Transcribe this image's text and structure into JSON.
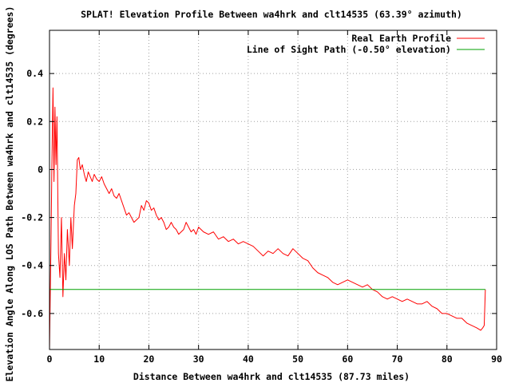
{
  "chart_data": {
    "type": "line",
    "title": "SPLAT! Elevation Profile Between wa4hrk and clt14535 (63.39° azimuth)",
    "xlabel": "Distance Between wa4hrk and clt14535 (87.73 miles)",
    "ylabel": "Elevation Angle Along LOS Path Between wa4hrk and clt14535 (degrees)",
    "xlim": [
      0,
      90
    ],
    "ylim": [
      -0.75,
      0.58
    ],
    "xticks": [
      "0",
      "10",
      "20",
      "30",
      "40",
      "50",
      "60",
      "70",
      "80",
      "90"
    ],
    "yticks": [
      "0.4",
      "0.2",
      "0",
      "-0.2",
      "-0.4",
      "-0.6"
    ],
    "grid": true,
    "legend_position": "top-right",
    "series": [
      {
        "name": "Real Earth Profile",
        "color": "#ff0000",
        "x": [
          0.0,
          0.3,
          0.5,
          0.7,
          0.9,
          1.1,
          1.3,
          1.5,
          1.8,
          2.1,
          2.4,
          2.7,
          3.0,
          3.3,
          3.6,
          4.0,
          4.3,
          4.6,
          5.0,
          5.3,
          5.6,
          5.9,
          6.2,
          6.6,
          7.0,
          7.4,
          7.8,
          8.2,
          8.6,
          9.0,
          9.5,
          10.0,
          10.5,
          11.0,
          11.5,
          12.0,
          12.5,
          13.0,
          13.5,
          14.0,
          14.5,
          15.0,
          15.5,
          16.0,
          16.5,
          17.0,
          17.5,
          18.0,
          18.5,
          19.0,
          19.5,
          20.0,
          20.5,
          21.0,
          21.5,
          22.0,
          22.5,
          23.0,
          23.5,
          24.0,
          24.5,
          25.0,
          25.5,
          26.0,
          26.5,
          27.0,
          27.5,
          28.0,
          28.5,
          29.0,
          29.5,
          30.0,
          31.0,
          32.0,
          33.0,
          34.0,
          35.0,
          36.0,
          37.0,
          38.0,
          39.0,
          40.0,
          41.0,
          42.0,
          43.0,
          44.0,
          45.0,
          46.0,
          47.0,
          48.0,
          49.0,
          50.0,
          51.0,
          52.0,
          53.0,
          54.0,
          55.0,
          56.0,
          57.0,
          58.0,
          59.0,
          60.0,
          61.0,
          62.0,
          63.0,
          64.0,
          65.0,
          66.0,
          67.0,
          68.0,
          69.0,
          70.0,
          71.0,
          72.0,
          73.0,
          74.0,
          75.0,
          76.0,
          77.0,
          78.0,
          79.0,
          80.0,
          81.0,
          82.0,
          83.0,
          84.0,
          85.0,
          86.0,
          86.8,
          87.2,
          87.5,
          87.73,
          87.73
        ],
        "y": [
          -0.75,
          -0.3,
          0.05,
          0.34,
          -0.05,
          0.26,
          0.02,
          0.22,
          -0.35,
          -0.45,
          -0.2,
          -0.53,
          -0.35,
          -0.46,
          -0.25,
          -0.4,
          -0.2,
          -0.33,
          -0.15,
          -0.1,
          0.04,
          0.05,
          0.0,
          0.02,
          -0.02,
          -0.05,
          -0.01,
          -0.03,
          -0.05,
          -0.02,
          -0.04,
          -0.05,
          -0.03,
          -0.06,
          -0.08,
          -0.1,
          -0.08,
          -0.11,
          -0.12,
          -0.1,
          -0.13,
          -0.16,
          -0.19,
          -0.18,
          -0.2,
          -0.22,
          -0.21,
          -0.2,
          -0.15,
          -0.17,
          -0.13,
          -0.14,
          -0.17,
          -0.16,
          -0.19,
          -0.21,
          -0.2,
          -0.22,
          -0.25,
          -0.24,
          -0.22,
          -0.24,
          -0.25,
          -0.27,
          -0.26,
          -0.25,
          -0.22,
          -0.24,
          -0.26,
          -0.25,
          -0.27,
          -0.24,
          -0.26,
          -0.27,
          -0.26,
          -0.29,
          -0.28,
          -0.3,
          -0.29,
          -0.31,
          -0.3,
          -0.31,
          -0.32,
          -0.34,
          -0.36,
          -0.34,
          -0.35,
          -0.33,
          -0.35,
          -0.36,
          -0.33,
          -0.35,
          -0.37,
          -0.38,
          -0.41,
          -0.43,
          -0.44,
          -0.45,
          -0.47,
          -0.48,
          -0.47,
          -0.46,
          -0.47,
          -0.48,
          -0.49,
          -0.48,
          -0.5,
          -0.51,
          -0.53,
          -0.54,
          -0.53,
          -0.54,
          -0.55,
          -0.54,
          -0.55,
          -0.56,
          -0.56,
          -0.55,
          -0.57,
          -0.58,
          -0.6,
          -0.6,
          -0.61,
          -0.62,
          -0.62,
          -0.64,
          -0.65,
          -0.66,
          -0.67,
          -0.66,
          -0.65,
          -0.5,
          -0.5
        ]
      },
      {
        "name": "Line of Sight Path (-0.50° elevation)",
        "color": "#00a000",
        "x": [
          0.0,
          87.73
        ],
        "y": [
          -0.5,
          -0.5
        ]
      }
    ]
  }
}
